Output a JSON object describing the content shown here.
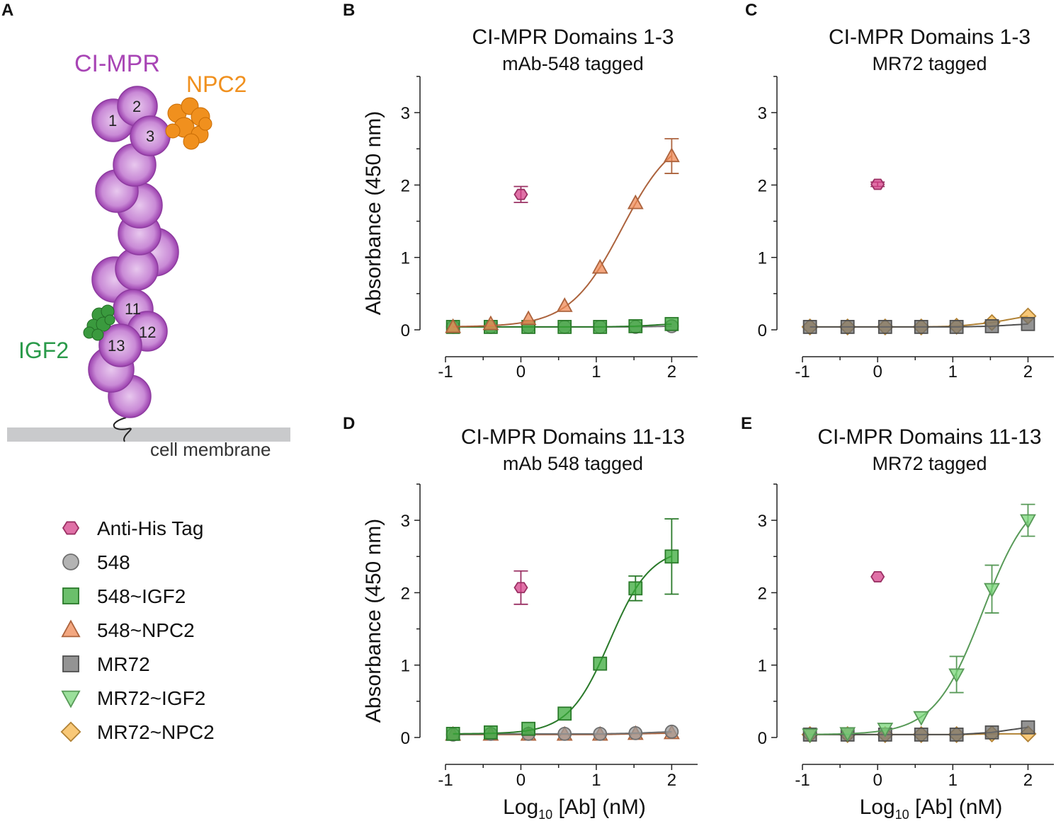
{
  "figure": {
    "panel_letters": {
      "A": "A",
      "B": "B",
      "C": "C",
      "D": "D",
      "E": "E"
    },
    "diagram": {
      "protein_label": "CI-MPR",
      "ligand_npc2": "NPC2",
      "ligand_igf2": "IGF2",
      "membrane_label": "cell membrane",
      "domain_numbers": [
        "1",
        "2",
        "3",
        "11",
        "12",
        "13"
      ]
    },
    "legend": [
      {
        "label": "Anti-His Tag",
        "marker": "hexagon",
        "color": "#d6428a"
      },
      {
        "label": "548",
        "marker": "circle",
        "color": "#9a9a9a"
      },
      {
        "label": "548~IGF2",
        "marker": "square",
        "color": "#3aa93a"
      },
      {
        "label": "548~NPC2",
        "marker": "triangle-up",
        "color": "#ef8a55"
      },
      {
        "label": "MR72",
        "marker": "square",
        "color": "#6f6f6f"
      },
      {
        "label": "MR72~IGF2",
        "marker": "triangle-down",
        "color": "#7ad67a"
      },
      {
        "label": "MR72~NPC2",
        "marker": "diamond",
        "color": "#f6b54a"
      }
    ]
  },
  "chart_data": [
    {
      "panel": "B",
      "type": "scatter",
      "title": "CI-MPR Domains 1-3",
      "subtitle": "mAb-548 tagged",
      "xlabel": "",
      "ylabel": "Absorbance (450 nm)",
      "xlim": [
        -1,
        2.25
      ],
      "ylim": [
        0,
        3.5
      ],
      "xticks": [
        -1,
        0,
        1,
        2
      ],
      "yticks": [
        0,
        1,
        2,
        3
      ],
      "series": [
        {
          "name": "548",
          "marker": "circle",
          "color": "#9a9a9a",
          "x": [
            -0.9,
            -0.4,
            0.1,
            0.58,
            1.05,
            1.52,
            2.0
          ],
          "y": [
            0.04,
            0.04,
            0.04,
            0.04,
            0.04,
            0.04,
            0.05
          ],
          "fit": true
        },
        {
          "name": "548~IGF2",
          "marker": "square",
          "color": "#3aa93a",
          "x": [
            -0.9,
            -0.4,
            0.1,
            0.58,
            1.05,
            1.52,
            2.0
          ],
          "y": [
            0.04,
            0.04,
            0.04,
            0.04,
            0.04,
            0.05,
            0.08
          ],
          "fit": true
        },
        {
          "name": "548~NPC2",
          "marker": "triangle-up",
          "color": "#ef8a55",
          "x": [
            -0.9,
            -0.4,
            0.1,
            0.58,
            1.05,
            1.52,
            2.0
          ],
          "y": [
            0.04,
            0.08,
            0.15,
            0.33,
            0.86,
            1.75,
            2.4
          ],
          "err": [
            0,
            0,
            0,
            0,
            0,
            0,
            0.24
          ],
          "fit": true
        },
        {
          "name": "Anti-His Tag",
          "marker": "hexagon",
          "color": "#d6428a",
          "x": [
            0
          ],
          "y": [
            1.87
          ],
          "err": [
            0.11
          ],
          "fit": false
        }
      ]
    },
    {
      "panel": "C",
      "type": "scatter",
      "title": "CI-MPR Domains 1-3",
      "subtitle": "MR72 tagged",
      "xlabel": "",
      "ylabel": "",
      "xlim": [
        -1,
        2.25
      ],
      "ylim": [
        0,
        3.5
      ],
      "xticks": [
        -1,
        0,
        1,
        2
      ],
      "yticks": [
        0,
        1,
        2,
        3
      ],
      "series": [
        {
          "name": "MR72~NPC2",
          "marker": "diamond",
          "color": "#f6b54a",
          "x": [
            -0.9,
            -0.4,
            0.1,
            0.58,
            1.05,
            1.52,
            2.0
          ],
          "y": [
            0.04,
            0.04,
            0.04,
            0.04,
            0.05,
            0.1,
            0.19
          ],
          "fit": true
        },
        {
          "name": "MR72",
          "marker": "square",
          "color": "#6f6f6f",
          "x": [
            -0.9,
            -0.4,
            0.1,
            0.58,
            1.05,
            1.52,
            2.0
          ],
          "y": [
            0.04,
            0.04,
            0.04,
            0.04,
            0.04,
            0.05,
            0.08
          ],
          "fit": true
        },
        {
          "name": "Anti-His Tag",
          "marker": "hexagon",
          "color": "#d6428a",
          "x": [
            0
          ],
          "y": [
            2.01
          ],
          "err": [
            0.03
          ],
          "fit": false
        }
      ]
    },
    {
      "panel": "D",
      "type": "scatter",
      "title": "CI-MPR Domains 11-13",
      "subtitle": "mAb 548 tagged",
      "xlabel": "Log10 [Ab] (nM)",
      "ylabel": "Absorbance (450 nm)",
      "xlim": [
        -1,
        2.25
      ],
      "ylim": [
        0,
        3.5
      ],
      "xticks": [
        -1,
        0,
        1,
        2
      ],
      "yticks": [
        0,
        1,
        2,
        3
      ],
      "series": [
        {
          "name": "548~NPC2",
          "marker": "triangle-up",
          "color": "#ef8a55",
          "x": [
            -0.9,
            -0.4,
            0.1,
            0.58,
            1.05,
            1.52,
            2.0
          ],
          "y": [
            0.04,
            0.04,
            0.04,
            0.04,
            0.04,
            0.05,
            0.06
          ],
          "fit": true
        },
        {
          "name": "548",
          "marker": "circle",
          "color": "#9a9a9a",
          "x": [
            -0.9,
            -0.4,
            0.1,
            0.58,
            1.05,
            1.52,
            2.0
          ],
          "y": [
            0.04,
            0.05,
            0.05,
            0.05,
            0.05,
            0.06,
            0.08
          ],
          "fit": true
        },
        {
          "name": "548~IGF2",
          "marker": "square",
          "color": "#3aa93a",
          "x": [
            -0.9,
            -0.4,
            0.1,
            0.58,
            1.05,
            1.52,
            2.0
          ],
          "y": [
            0.05,
            0.07,
            0.12,
            0.33,
            1.02,
            2.06,
            2.5
          ],
          "err": [
            0,
            0,
            0,
            0,
            0,
            0.17,
            0.52
          ],
          "fit": true
        },
        {
          "name": "Anti-His Tag",
          "marker": "hexagon",
          "color": "#d6428a",
          "x": [
            0
          ],
          "y": [
            2.07
          ],
          "err": [
            0.23
          ],
          "fit": false
        }
      ]
    },
    {
      "panel": "E",
      "type": "scatter",
      "title": "CI-MPR Domains 11-13",
      "subtitle": "MR72 tagged",
      "xlabel": "Log10 [Ab] (nM)",
      "ylabel": "",
      "xlim": [
        -1,
        2.25
      ],
      "ylim": [
        0,
        3.5
      ],
      "xticks": [
        -1,
        0,
        1,
        2
      ],
      "yticks": [
        0,
        1,
        2,
        3
      ],
      "series": [
        {
          "name": "MR72~NPC2",
          "marker": "diamond",
          "color": "#f6b54a",
          "x": [
            -0.9,
            -0.4,
            0.1,
            0.58,
            1.05,
            1.52,
            2.0
          ],
          "y": [
            0.04,
            0.04,
            0.04,
            0.04,
            0.04,
            0.05,
            0.05
          ],
          "fit": true
        },
        {
          "name": "MR72",
          "marker": "square",
          "color": "#6f6f6f",
          "x": [
            -0.9,
            -0.4,
            0.1,
            0.58,
            1.05,
            1.52,
            2.0
          ],
          "y": [
            0.04,
            0.04,
            0.04,
            0.04,
            0.04,
            0.07,
            0.14
          ],
          "fit": true
        },
        {
          "name": "MR72~IGF2",
          "marker": "triangle-down",
          "color": "#7ad67a",
          "x": [
            -0.9,
            -0.4,
            0.1,
            0.58,
            1.05,
            1.52,
            2.0
          ],
          "y": [
            0.04,
            0.06,
            0.12,
            0.28,
            0.87,
            2.05,
            3.0
          ],
          "err": [
            0,
            0,
            0,
            0,
            0.25,
            0.33,
            0.22
          ],
          "fit": true
        },
        {
          "name": "Anti-His Tag",
          "marker": "hexagon",
          "color": "#d6428a",
          "x": [
            0
          ],
          "y": [
            2.22
          ],
          "err": [
            0
          ],
          "fit": false
        }
      ]
    }
  ]
}
